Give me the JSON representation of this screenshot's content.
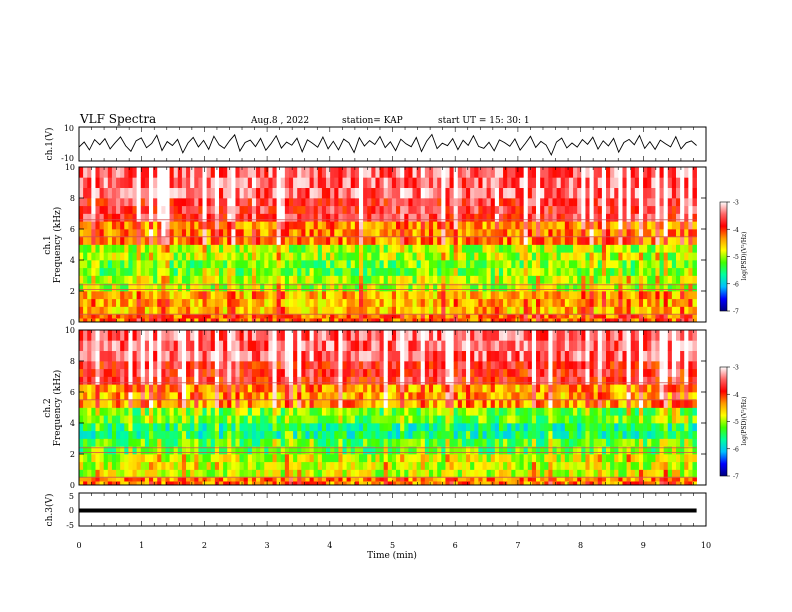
{
  "header": {
    "title": "VLF Spectra",
    "date": "Aug.8 , 2022",
    "station": "station= KAP",
    "start": "start UT =  15: 30: 1"
  },
  "colorbar": {
    "label": "log(PSD)(V²/Hz)",
    "ticks": [
      "-3",
      "-4",
      "-5",
      "-6",
      "-7"
    ],
    "colors": [
      "#000080",
      "#0000ff",
      "#00bfff",
      "#00ffa0",
      "#40ff00",
      "#ffff00",
      "#ff9900",
      "#ff0000",
      "#ff6666",
      "#ffffff"
    ]
  },
  "chart_data": [
    {
      "type": "line",
      "panel": "ch1-waveform",
      "ylabel": "ch.1(V)",
      "ylim": [
        -10,
        10
      ],
      "yticks": [
        "10",
        "-10"
      ],
      "xlim": [
        0,
        9.85
      ],
      "series": [
        {
          "values": [
            -1.8,
            1.2,
            -3.5,
            2.6,
            -0.4,
            3.1,
            -2.9,
            0.8,
            4.2,
            -1.1,
            -4.3,
            1.9,
            3.6,
            -2.2,
            0.3,
            5.1,
            -3.8,
            1.4,
            -0.9,
            2.7,
            -5.2,
            0.6,
            3.9,
            -1.7,
            2.1,
            -3.1,
            4.6,
            -0.5,
            -2.6,
            1.8,
            5.4,
            -4.1,
            0.9,
            2.3,
            -1.5,
            3.3,
            -3.7,
            0.2,
            4.8,
            -2.4,
            1.1,
            -0.7,
            3.4,
            -4.6,
            2.5,
            0.4,
            -1.9,
            4.1,
            -2.8,
            1.6,
            -3.4,
            2.9,
            0.7,
            -5.0,
            3.7,
            -1.2,
            2.0,
            -0.3,
            4.4,
            -2.1,
            1.3,
            -3.9,
            2.8,
            0.1,
            -1.6,
            3.8,
            -4.4,
            1.7,
            5.6,
            -2.7,
            0.5,
            -1.0,
            3.2,
            -3.3,
            2.2,
            -0.8,
            4.9,
            -1.4,
            -2.5,
            1.0,
            -4.0,
            2.4,
            0.8,
            -1.3,
            3.0,
            -3.6,
            0.3,
            4.5,
            -2.0,
            1.5,
            -0.6,
            -6.4,
            1.2,
            3.5,
            -2.3,
            0.6,
            -1.8,
            2.6,
            -0.2,
            4.0,
            -3.0,
            1.9,
            -1.1,
            3.3,
            -4.8,
            0.9,
            2.7,
            -0.4,
            5.0,
            -2.6,
            1.4,
            -3.2,
            2.3,
            0.2,
            -1.7,
            4.3,
            -2.9,
            0.7,
            1.8,
            -0.9
          ]
        }
      ]
    },
    {
      "type": "heatmap",
      "panel": "ch1-spectrogram",
      "ylabel": "ch.1\nFrequency (kHz)",
      "ylim": [
        0,
        10
      ],
      "yticks": [
        "0",
        "2",
        "4",
        "6",
        "8",
        "10"
      ],
      "xlim": [
        0,
        9.85
      ],
      "value_unit": "log(PSD)",
      "zlim": [
        -7,
        -3
      ],
      "rows": [
        "0-0.5 kHz",
        "0.5-2 kHz",
        "2-3 kHz",
        "3-4 kHz",
        "4-5 kHz",
        "5-6.5 kHz",
        "6.5-8 kHz",
        "8-10 kHz"
      ],
      "mean_log_psd": [
        -4.2,
        -4.5,
        -5.0,
        -5.2,
        -5.0,
        -4.3,
        -3.7,
        -3.5
      ]
    },
    {
      "type": "heatmap",
      "panel": "ch2-spectrogram",
      "ylabel": "ch.2\nFrequency (kHz)",
      "ylim": [
        0,
        10
      ],
      "yticks": [
        "0",
        "2",
        "4",
        "6",
        "8",
        "10"
      ],
      "xlim": [
        0,
        9.85
      ],
      "value_unit": "log(PSD)",
      "zlim": [
        -7,
        -3
      ],
      "rows": [
        "0-0.5 kHz",
        "0.5-2 kHz",
        "2-3 kHz",
        "3-4 kHz",
        "4-5 kHz",
        "5-6.5 kHz",
        "6.5-8 kHz",
        "8-10 kHz"
      ],
      "mean_log_psd": [
        -4.3,
        -4.9,
        -5.3,
        -5.6,
        -5.2,
        -4.4,
        -3.8,
        -3.5
      ]
    },
    {
      "type": "line",
      "panel": "ch3-waveform",
      "ylabel": "ch.3(V)",
      "ylim": [
        -5,
        5
      ],
      "yticks": [
        "5",
        "0",
        "-5"
      ],
      "xlim": [
        0,
        9.85
      ],
      "series": [
        {
          "values": [
            -0.3,
            0.3,
            -0.3,
            0.3
          ]
        }
      ]
    }
  ],
  "xaxis": {
    "label": "Time (min)",
    "xlim": [
      0,
      10
    ],
    "ticks": [
      "0",
      "1",
      "2",
      "3",
      "4",
      "5",
      "6",
      "7",
      "8",
      "9",
      "10"
    ]
  }
}
